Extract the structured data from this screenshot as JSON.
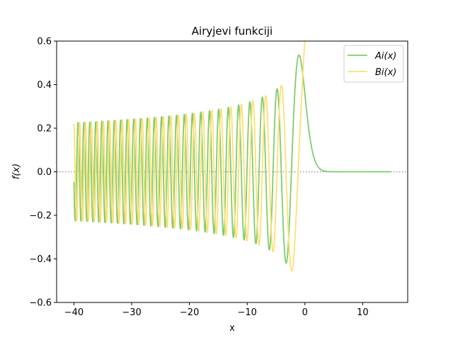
{
  "chart_data": {
    "type": "line",
    "title": "Airyjevi funkciji",
    "xlabel": "x",
    "ylabel": "f(x)",
    "xlim": [
      -43,
      17.8
    ],
    "ylim": [
      -0.6,
      0.6
    ],
    "x_ticks": [
      -40,
      -30,
      -20,
      -10,
      0,
      10
    ],
    "x_tick_labels": [
      "−40",
      "−30",
      "−20",
      "−10",
      "0",
      "10"
    ],
    "y_ticks": [
      -0.6,
      -0.4,
      -0.2,
      0.0,
      0.2,
      0.4,
      0.6
    ],
    "y_tick_labels": [
      "−0.6",
      "−0.4",
      "−0.2",
      "0.0",
      "0.2",
      "0.4",
      "0.6"
    ],
    "x_range": [
      -40,
      15
    ],
    "zero_line": {
      "y": 0,
      "style": "dotted",
      "color": "#999999"
    },
    "legend": {
      "placement": "top-right"
    },
    "series": [
      {
        "name": "Ai(x)",
        "function": "airy_ai",
        "color": "#7fcc70"
      },
      {
        "name": "Bi(x)",
        "function": "airy_bi",
        "color": "#ffe070"
      }
    ],
    "grid": false
  }
}
